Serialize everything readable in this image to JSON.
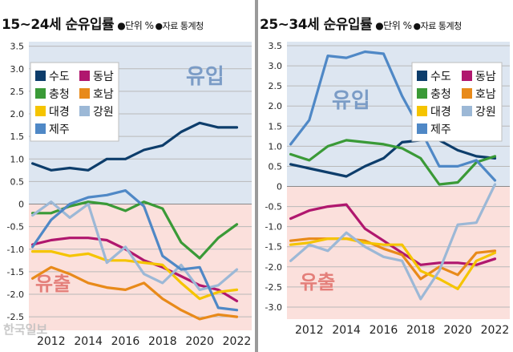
{
  "chart_data": [
    {
      "type": "line",
      "title": "15~24세 순유입률",
      "unit_label": "단위 %",
      "source_label": "자료",
      "source": "통계청",
      "x": [
        2011,
        2012,
        2013,
        2014,
        2015,
        2016,
        2017,
        2018,
        2019,
        2020,
        2021,
        2022
      ],
      "xticks": [
        2012,
        2014,
        2016,
        2018,
        2020,
        2022
      ],
      "yticks": [
        3.5,
        3.0,
        2.5,
        2.0,
        1.5,
        1.0,
        0.5,
        0,
        -0.5,
        -1.0,
        -1.5,
        -2.0,
        -2.5
      ],
      "ytick_labels": [
        "3.5",
        "3.0",
        "2.5",
        "2.0",
        "1.5",
        "1.0",
        "0.5",
        "0",
        "-0.5",
        "-1.0",
        "-1.5",
        "-2.0",
        "-2.5"
      ],
      "ylim": [
        -2.8,
        3.6
      ],
      "xlim": [
        2010.8,
        2022.8
      ],
      "inflow_label": "유입",
      "outflow_label": "유출",
      "series": [
        {
          "name": "수도",
          "color": "#0d3d6b",
          "values": [
            0.9,
            0.75,
            0.8,
            0.75,
            1.0,
            1.0,
            1.2,
            1.3,
            1.6,
            1.8,
            1.7,
            1.7
          ]
        },
        {
          "name": "동남",
          "color": "#b0176e",
          "values": [
            -0.9,
            -0.8,
            -0.75,
            -0.75,
            -0.8,
            -1.0,
            -1.25,
            -1.4,
            -1.6,
            -1.8,
            -1.9,
            -2.15
          ]
        },
        {
          "name": "충청",
          "color": "#3a9a37",
          "values": [
            -0.2,
            -0.2,
            -0.05,
            0.05,
            0.0,
            -0.15,
            0.05,
            -0.1,
            -0.85,
            -1.2,
            -0.75,
            -0.45
          ]
        },
        {
          "name": "호남",
          "color": "#e88a1a",
          "values": [
            -1.65,
            -1.4,
            -1.55,
            -1.75,
            -1.85,
            -1.9,
            -1.75,
            -2.1,
            -2.35,
            -2.55,
            -2.45,
            -2.5
          ]
        },
        {
          "name": "대경",
          "color": "#f5c400",
          "values": [
            -1.05,
            -1.05,
            -1.15,
            -1.1,
            -1.25,
            -1.25,
            -1.3,
            -1.35,
            -1.75,
            -2.1,
            -1.95,
            -1.9
          ]
        },
        {
          "name": "강원",
          "color": "#9cb8d6",
          "values": [
            -0.25,
            0.05,
            -0.3,
            0.0,
            -1.3,
            -0.95,
            -1.55,
            -1.75,
            -1.35,
            -1.9,
            -1.8,
            -1.45
          ]
        },
        {
          "name": "제주",
          "color": "#4f88c6",
          "values": [
            -0.95,
            -0.35,
            0.0,
            0.15,
            0.2,
            0.3,
            -0.05,
            -1.15,
            -1.45,
            -1.4,
            -2.3,
            -2.35
          ]
        }
      ]
    },
    {
      "type": "line",
      "title": "25~34세 순유입률",
      "unit_label": "단위 %",
      "source_label": "자료",
      "source": "통계청",
      "x": [
        2011,
        2012,
        2013,
        2014,
        2015,
        2016,
        2017,
        2018,
        2019,
        2020,
        2021,
        2022
      ],
      "xticks": [
        2012,
        2014,
        2016,
        2018,
        2020,
        2022
      ],
      "yticks": [
        3.5,
        3.0,
        2.5,
        2.0,
        1.5,
        1.0,
        0.5,
        0,
        -0.5,
        -1.0,
        -1.5,
        -2.0,
        -2.5,
        -3.0
      ],
      "ytick_labels": [
        "3.5",
        "3.0",
        "2.5",
        "2.0",
        "1.5",
        "1.0",
        "0.5",
        "0",
        "-0.5",
        "-1.0",
        "-1.5",
        "-2.0",
        "-2.5",
        "-3.0"
      ],
      "ylim": [
        -3.3,
        3.6
      ],
      "xlim": [
        2010.8,
        2022.8
      ],
      "inflow_label": "유입",
      "outflow_label": "유출",
      "series": [
        {
          "name": "수도",
          "color": "#0d3d6b",
          "values": [
            0.55,
            0.45,
            0.35,
            0.25,
            0.5,
            0.7,
            1.1,
            1.15,
            1.15,
            0.9,
            0.75,
            0.7
          ]
        },
        {
          "name": "동남",
          "color": "#b0176e",
          "values": [
            -0.8,
            -0.6,
            -0.5,
            -0.45,
            -1.05,
            -1.35,
            -1.65,
            -1.95,
            -1.9,
            -1.9,
            -1.95,
            -1.8
          ]
        },
        {
          "name": "충청",
          "color": "#3a9a37",
          "values": [
            0.8,
            0.65,
            1.0,
            1.15,
            1.1,
            1.05,
            0.95,
            0.7,
            0.05,
            0.1,
            0.6,
            0.75
          ]
        },
        {
          "name": "호남",
          "color": "#e88a1a",
          "values": [
            -1.35,
            -1.3,
            -1.3,
            -1.3,
            -1.35,
            -1.55,
            -1.7,
            -2.3,
            -2.0,
            -2.2,
            -1.65,
            -1.6
          ]
        },
        {
          "name": "대경",
          "color": "#f5c400",
          "values": [
            -1.45,
            -1.4,
            -1.3,
            -1.3,
            -1.4,
            -1.45,
            -1.45,
            -2.1,
            -2.3,
            -2.55,
            -1.85,
            -1.65
          ]
        },
        {
          "name": "강원",
          "color": "#9cb8d6",
          "values": [
            -1.85,
            -1.45,
            -1.6,
            -1.15,
            -1.5,
            -1.75,
            -1.85,
            -2.8,
            -2.1,
            -0.95,
            -0.9,
            0.05
          ]
        },
        {
          "name": "제주",
          "color": "#4f88c6",
          "values": [
            1.05,
            1.65,
            3.25,
            3.2,
            3.35,
            3.3,
            2.25,
            1.4,
            0.5,
            0.5,
            0.65,
            0.15
          ]
        }
      ]
    }
  ],
  "watermark": "한국일보"
}
